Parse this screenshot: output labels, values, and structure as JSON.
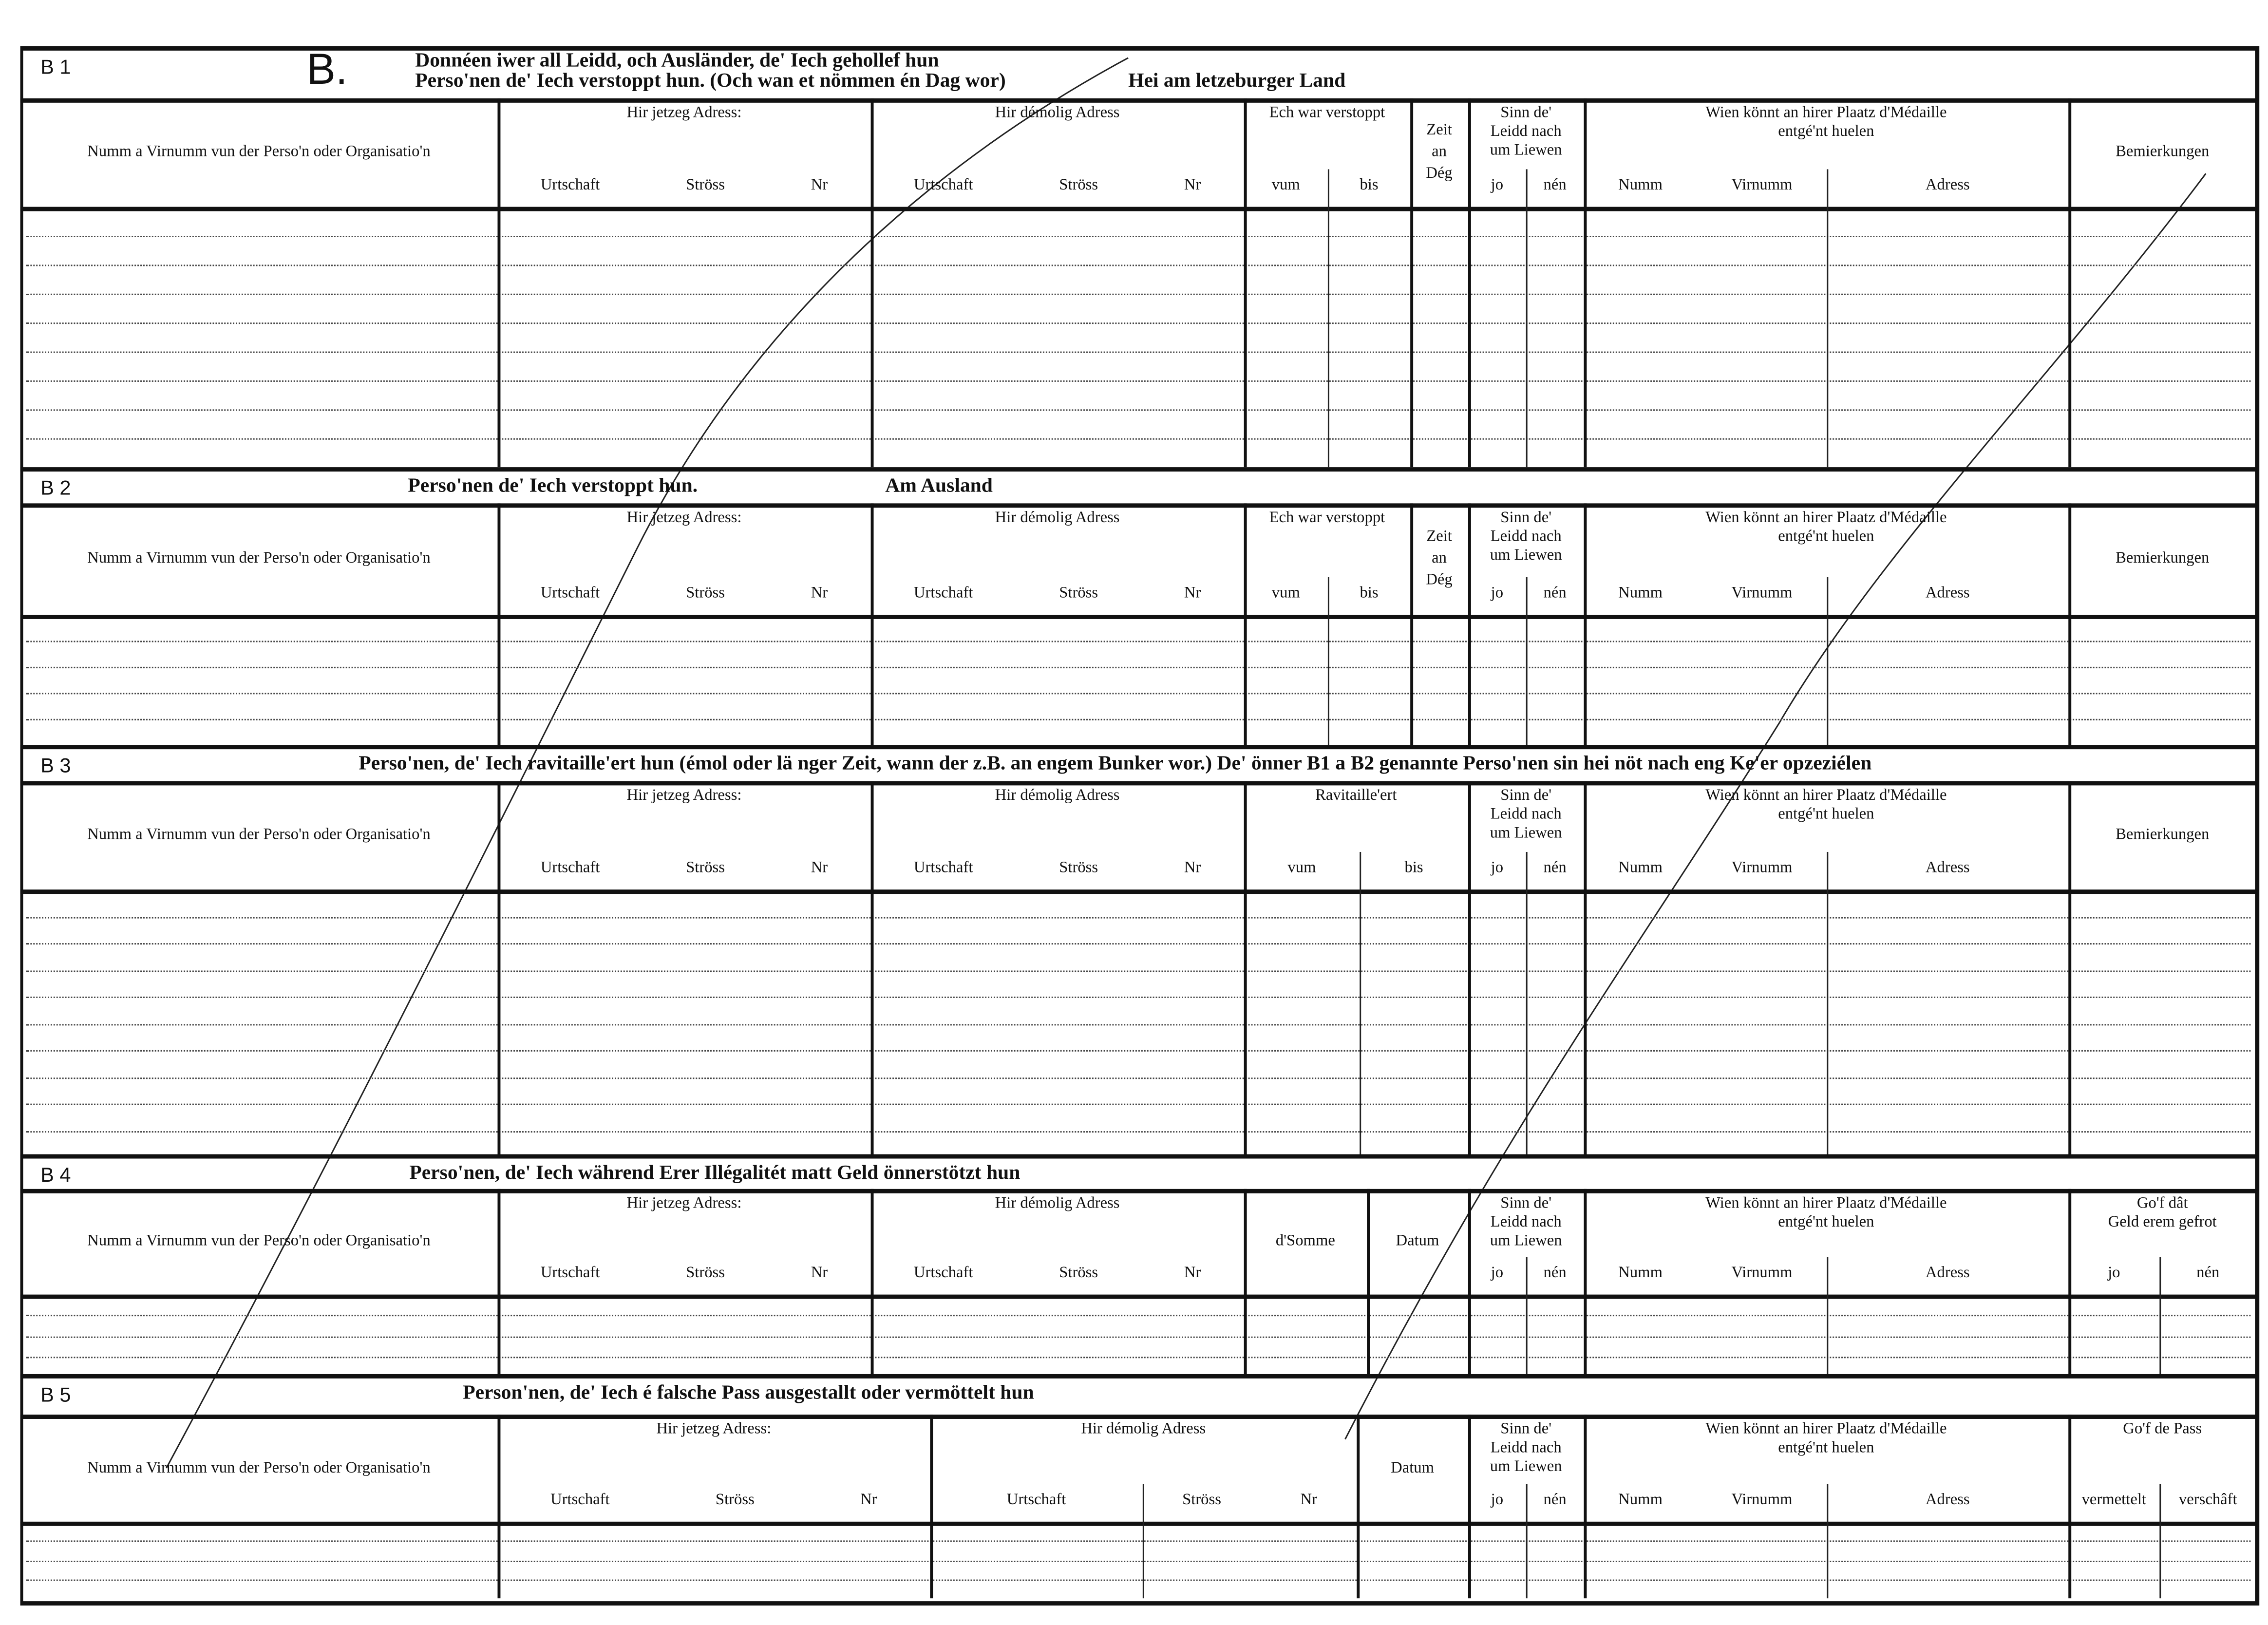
{
  "form_letter": "B.",
  "sections": [
    {
      "id": "B 1",
      "title_lines": [
        "Donnéen iwer all Leidd, och Ausländer, de' Iech gehollef hun",
        "Perso'nen de' Iech verstoppt hun. (Och wan et nömmen én Dag wor)"
      ],
      "title_right": "Hei am letzeburger Land",
      "columns": [
        {
          "label": "Numm a Virnumm vun der Perso'n oder Organisatio'n",
          "sub": []
        },
        {
          "label": "Hir jetzeg Adress:",
          "sub": [
            [
              "Urtschaft",
              "Ströss",
              "Nr"
            ]
          ]
        },
        {
          "label": "Hir démolig Adress",
          "sub": [
            [
              "Urtschaft",
              "Ströss",
              "Nr"
            ]
          ]
        },
        {
          "label": "Ech war verstoppt",
          "sub": [
            [
              "vum"
            ],
            [
              "bis"
            ]
          ]
        },
        {
          "label": "Zeit\nan\nDég",
          "sub": []
        },
        {
          "label": "Sinn de'\nLeidd nach\num Liewen",
          "sub": [
            [
              "jo"
            ],
            [
              "nén"
            ]
          ]
        },
        {
          "label": "Wien könnt an hirer Plaatz d'Médaille\nentgé'nt huelen",
          "sub": [
            [
              "Numm",
              "Virnumm"
            ],
            [
              "Adress"
            ]
          ]
        },
        {
          "label": "Bemierkungen",
          "sub": []
        }
      ]
    },
    {
      "id": "B 2",
      "title_lines": [
        "Perso'nen de' Iech verstoppt hun."
      ],
      "title_right": "Am Ausland",
      "columns": [
        {
          "label": "Numm a Virnumm vun der Perso'n oder Organisatio'n",
          "sub": []
        },
        {
          "label": "Hir jetzeg Adress:",
          "sub": [
            [
              "Urtschaft",
              "Ströss",
              "Nr"
            ]
          ]
        },
        {
          "label": "Hir démolig Adress",
          "sub": [
            [
              "Urtschaft",
              "Ströss",
              "Nr"
            ]
          ]
        },
        {
          "label": "Ech war verstoppt",
          "sub": [
            [
              "vum"
            ],
            [
              "bis"
            ]
          ]
        },
        {
          "label": "Zeit\nan\nDég",
          "sub": []
        },
        {
          "label": "Sinn de'\nLeidd nach\num Liewen",
          "sub": [
            [
              "jo"
            ],
            [
              "nén"
            ]
          ]
        },
        {
          "label": "Wien könnt an hirer Plaatz d'Médaille\nentgé'nt huelen",
          "sub": [
            [
              "Numm",
              "Virnumm"
            ],
            [
              "Adress"
            ]
          ]
        },
        {
          "label": "Bemierkungen",
          "sub": []
        }
      ]
    },
    {
      "id": "B 3",
      "title_lines": [
        "Perso'nen, de' Iech ravitaille'ert hun (émol oder lä nger Zeit, wann der z.B. an engem Bunker wor.)  De' önner B1 a B2 genannte Perso'nen sin hei nöt nach eng Ke'er opzeziélen"
      ],
      "title_right": "",
      "columns": [
        {
          "label": "Numm a Virnumm vun der Perso'n oder Organisatio'n",
          "sub": []
        },
        {
          "label": "Hir jetzeg Adress:",
          "sub": [
            [
              "Urtschaft",
              "Ströss",
              "Nr"
            ]
          ]
        },
        {
          "label": "Hir démolig Adress",
          "sub": [
            [
              "Urtschaft",
              "Ströss",
              "Nr"
            ]
          ]
        },
        {
          "label": "Ravitaille'ert",
          "sub": [
            [
              "vum"
            ],
            [
              "bis"
            ]
          ]
        },
        {
          "label": "Sinn de'\nLeidd nach\num Liewen",
          "sub": [
            [
              "jo"
            ],
            [
              "nén"
            ]
          ]
        },
        {
          "label": "Wien könnt an hirer Plaatz d'Médaille\nentgé'nt huelen",
          "sub": [
            [
              "Numm",
              "Virnumm"
            ],
            [
              "Adress"
            ]
          ]
        },
        {
          "label": "Bemierkungen",
          "sub": []
        }
      ]
    },
    {
      "id": "B 4",
      "title_lines": [
        "Perso'nen, de' Iech während Erer Illégalitét matt Geld önnerstötzt hun"
      ],
      "title_right": "",
      "columns": [
        {
          "label": "Numm a Virnumm vun der Perso'n oder Organisatio'n",
          "sub": []
        },
        {
          "label": "Hir jetzeg Adress:",
          "sub": [
            [
              "Urtschaft",
              "Ströss",
              "Nr"
            ]
          ]
        },
        {
          "label": "Hir démolig Adress",
          "sub": [
            [
              "Urtschaft",
              "Ströss",
              "Nr"
            ]
          ]
        },
        {
          "label": "d'Somme",
          "sub": []
        },
        {
          "label": "Datum",
          "sub": []
        },
        {
          "label": "Sinn de'\nLeidd nach\num Liewen",
          "sub": [
            [
              "jo"
            ],
            [
              "nén"
            ]
          ]
        },
        {
          "label": "Wien könnt an hirer Plaatz d'Médaille\nentgé'nt huelen",
          "sub": [
            [
              "Numm",
              "Virnumm"
            ],
            [
              "Adress"
            ]
          ]
        },
        {
          "label": "Go'f dât\nGeld erem gefrot",
          "sub": [
            [
              "jo"
            ],
            [
              "nén"
            ]
          ]
        }
      ]
    },
    {
      "id": "B 5",
      "title_lines": [
        "Person'nen, de' Iech é falsche Pass ausgestallt oder vermöttelt hun"
      ],
      "title_right": "",
      "columns": [
        {
          "label": "Numm a Virnumm vun der Perso'n oder Organisatio'n",
          "sub": []
        },
        {
          "label": "Hir jetzeg Adress:",
          "sub": [
            [
              "Urtschaft",
              "Ströss",
              "Nr"
            ]
          ]
        },
        {
          "label": "Hir démolig Adress",
          "sub": [
            [
              "Urtschaft"
            ],
            [
              "Ströss",
              "Nr"
            ]
          ]
        },
        {
          "label": "Datum",
          "sub": []
        },
        {
          "label": "Sinn de'\nLeidd nach\num Liewen",
          "sub": [
            [
              "jo"
            ],
            [
              "nén"
            ]
          ]
        },
        {
          "label": "Wien könnt an hirer Plaatz d'Médaille\nentgé'nt huelen",
          "sub": [
            [
              "Numm",
              "Virnumm"
            ],
            [
              "Adress"
            ]
          ]
        },
        {
          "label": "Go'f de Pass",
          "sub": [
            [
              "vermettelt"
            ],
            [
              "verschâft"
            ]
          ]
        }
      ]
    }
  ]
}
